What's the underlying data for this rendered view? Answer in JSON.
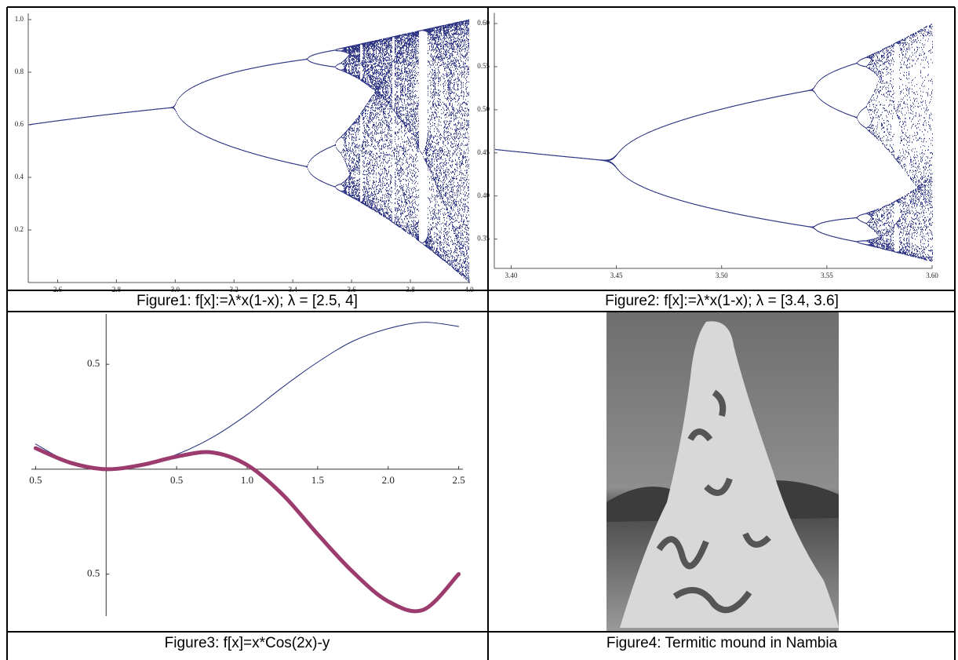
{
  "figures": [
    {
      "caption": "Figure1: f[x]:=λ*x(1-x); λ = [2.5, 4]",
      "chart": {
        "type": "bifurcation",
        "color": "#2e3585",
        "xlim": [
          2.5,
          4.0
        ],
        "ylim": [
          0,
          1.0
        ],
        "xticks": [
          2.6,
          2.8,
          {
            "value": 3,
            "label": "3.0"
          },
          3.2,
          3.4,
          3.6,
          3.8,
          {
            "value": 4,
            "label": "4.0"
          }
        ],
        "yticks": [
          0.2,
          0.4,
          0.6,
          0.8,
          {
            "value": 1,
            "label": "1.0"
          }
        ]
      }
    },
    {
      "caption": "Figure2: f[x]:=λ*x(1-x); λ = [3.4, 3.6]",
      "chart": {
        "type": "bifurcation",
        "color": "#2e3585",
        "xlim": [
          3.392,
          3.6
        ],
        "ylim": [
          0.316,
          0.605
        ],
        "xticks": [
          {
            "value": 3.4,
            "label": "3.40"
          },
          3.45,
          {
            "value": 3.5,
            "label": "3.50"
          },
          3.55,
          {
            "value": 3.6,
            "label": "3.60"
          }
        ],
        "yticks": [
          0.35,
          {
            "value": 0.4,
            "label": "0.40"
          },
          0.45,
          {
            "value": 0.5,
            "label": "0.50"
          },
          0.55,
          {
            "value": 0.6,
            "label": "0.60"
          }
        ]
      }
    },
    {
      "caption": "Figure3: f[x]=x*Cos(2x)-y",
      "chart": {
        "type": "line",
        "xlim": [
          -0.53,
          2.53
        ],
        "ylim": [
          -0.7,
          0.74
        ],
        "xticks": [
          {
            "value": -0.5,
            "label": "0.5"
          },
          0.5,
          {
            "value": 1,
            "label": "1.0"
          },
          1.5,
          {
            "value": 2,
            "label": "2.0"
          },
          2.5
        ],
        "yticks": [
          0.5,
          {
            "value": -0.5,
            "label": "0.5"
          }
        ],
        "x": [
          -0.5,
          -0.25,
          0,
          0.25,
          0.5,
          0.75,
          1.0,
          1.25,
          1.5,
          1.75,
          2.0,
          2.25,
          2.5
        ],
        "series": [
          {
            "color": "#1f2a7a",
            "values": [
              0.12,
              0.03,
              0,
              0.02,
              0.07,
              0.15,
              0.26,
              0.39,
              0.51,
              0.61,
              0.67,
              0.7,
              0.68
            ]
          },
          {
            "color": "#9b3b6e",
            "values": [
              0.1,
              0.03,
              0,
              0.02,
              0.06,
              0.08,
              0.02,
              -0.12,
              -0.31,
              -0.49,
              -0.63,
              -0.67,
              -0.5
            ]
          }
        ]
      }
    },
    {
      "caption": "Figure4: Termitic mound in Nambia"
    }
  ]
}
